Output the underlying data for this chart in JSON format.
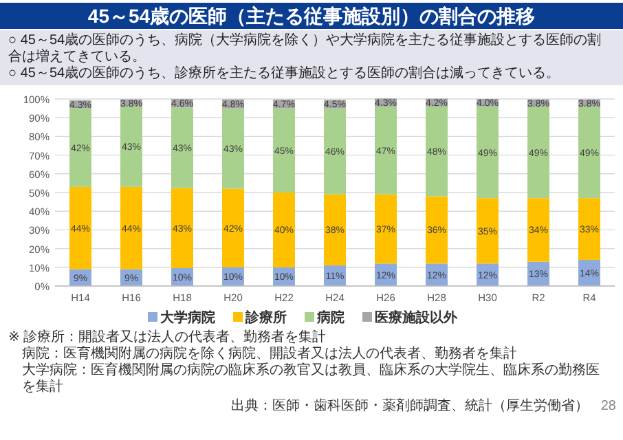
{
  "chart_data": {
    "type": "bar",
    "stacked": true,
    "title": "45～54歳の医師（主たる従事施設別）の割合の推移",
    "subtitle": "○ 45～54歳の医師のうち、病院（大学病院を除く）や大学病院を主たる従事施設とする医師の割合は増えてきている。\n○ 45～54歳の医師のうち、診療所を主たる従事施設とする医師の割合は減ってきている。",
    "categories": [
      "H14",
      "H16",
      "H18",
      "H20",
      "H22",
      "H24",
      "H26",
      "H28",
      "H30",
      "R2",
      "R4"
    ],
    "series": [
      {
        "name": "大学病院",
        "color": "#8faadc",
        "values": [
          9,
          9,
          9.6,
          10,
          10,
          11,
          12,
          12,
          12,
          13,
          14
        ],
        "value_labels": [
          "9%",
          "9%",
          "10%",
          "10%",
          "10%",
          "11%",
          "12%",
          "12%",
          "12%",
          "13%",
          "14%"
        ]
      },
      {
        "name": "診療所",
        "color": "#ffc000",
        "values": [
          44,
          44,
          42.8,
          42,
          40,
          38,
          37,
          36,
          35,
          34,
          33
        ],
        "value_labels": [
          "44%",
          "44%",
          "43%",
          "42%",
          "40%",
          "38%",
          "37%",
          "36%",
          "35%",
          "34%",
          "33%"
        ]
      },
      {
        "name": "病院",
        "color": "#a9d18e",
        "values": [
          42,
          43,
          43,
          43,
          45,
          46,
          47,
          48,
          49,
          49,
          49
        ],
        "value_labels": [
          "42%",
          "43%",
          "43%",
          "43%",
          "45%",
          "46%",
          "47%",
          "48%",
          "49%",
          "49%",
          "49%"
        ]
      },
      {
        "name": "医療施設以外",
        "color": "#a6a6a6",
        "values": [
          4.3,
          3.8,
          4.6,
          4.8,
          4.7,
          4.5,
          4.3,
          4.2,
          4.0,
          3.8,
          3.8
        ],
        "value_labels": [
          "4.3%",
          "3.8%",
          "4.6%",
          "4.8%",
          "4.7%",
          "4.5%",
          "4.3%",
          "4.2%",
          "4.0%",
          "3.8%",
          "3.8%"
        ]
      }
    ],
    "ylim": [
      0,
      100
    ],
    "yticks": [
      {
        "value": 0,
        "label": "0%"
      },
      {
        "value": 10,
        "label": "10%"
      },
      {
        "value": 20,
        "label": "20%"
      },
      {
        "value": 30,
        "label": "30%"
      },
      {
        "value": 40,
        "label": "40%"
      },
      {
        "value": 50,
        "label": "50%"
      },
      {
        "value": 60,
        "label": "60%"
      },
      {
        "value": 70,
        "label": "70%"
      },
      {
        "value": 80,
        "label": "80%"
      },
      {
        "value": 90,
        "label": "90%"
      },
      {
        "value": 100,
        "label": "100%"
      }
    ],
    "grid": "y",
    "legend": "bottom",
    "annotations": [
      "※ 診療所：開設者又は法人の代表者、勤務者を集計",
      "病院：医育機関附属の病院を除く病院、開設者又は法人の代表者、勤務者を集計",
      "大学病院：医育機関附属の病院の臨床系の教官又は教員、臨床系の大学院生、臨床系の勤務医を集計",
      "出典：医師・歯科医師・薬剤師調査、統計（厚生労働省）",
      "28"
    ]
  }
}
